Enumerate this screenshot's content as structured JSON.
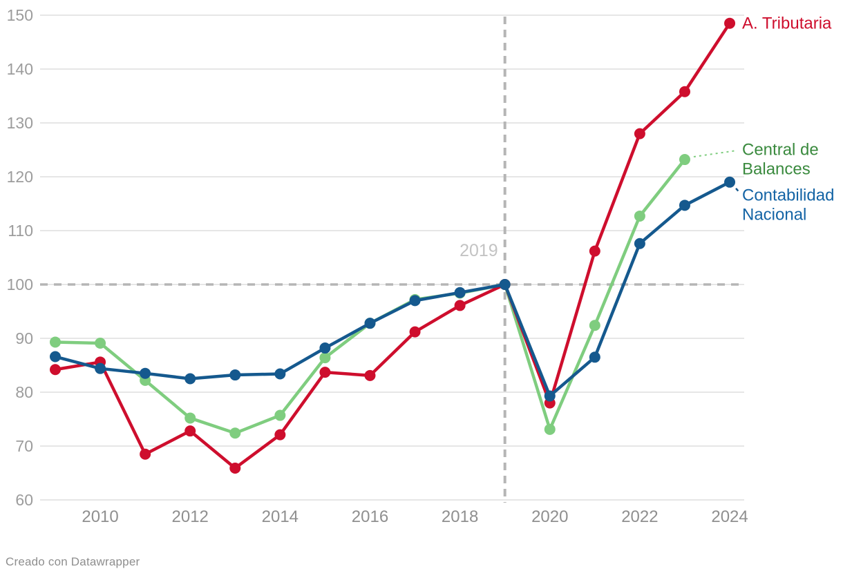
{
  "chart_data": {
    "type": "line",
    "title": "",
    "x": [
      2009,
      2010,
      2011,
      2012,
      2013,
      2014,
      2015,
      2016,
      2017,
      2018,
      2019,
      2020,
      2021,
      2022,
      2023,
      2024
    ],
    "series": [
      {
        "name": "A. Tributaria",
        "label_lines": [
          "A. Tributaria"
        ],
        "color": "#ce0e2d",
        "label_color": "#ce0e2d",
        "values": [
          84.2,
          85.6,
          68.5,
          72.8,
          65.9,
          72.1,
          83.7,
          83.1,
          91.2,
          96.1,
          100,
          78.0,
          106.2,
          128.0,
          135.8,
          148.5
        ]
      },
      {
        "name": "Central de Balances",
        "label_lines": [
          "Central de",
          "Balances"
        ],
        "color": "#7fcd7f",
        "label_color": "#3a8a3e",
        "values": [
          89.3,
          89.1,
          82.2,
          75.2,
          72.4,
          75.7,
          86.4,
          92.8,
          97.2,
          98.4,
          100,
          73.1,
          92.4,
          112.7,
          123.2,
          null
        ]
      },
      {
        "name": "Contabilidad Nacional",
        "label_lines": [
          "Contabilidad",
          "Nacional"
        ],
        "color": "#15598e",
        "label_color": "#1464a5",
        "values": [
          86.6,
          84.4,
          83.5,
          82.5,
          83.2,
          83.4,
          88.2,
          92.8,
          97.0,
          98.5,
          100,
          79.3,
          86.5,
          107.6,
          114.7,
          119.0
        ]
      }
    ],
    "ylim": [
      60,
      150
    ],
    "yticks": [
      "60",
      "70",
      "80",
      "90",
      "100",
      "110",
      "120",
      "130",
      "140",
      "150"
    ],
    "xticks": [
      "2010",
      "2012",
      "2014",
      "2016",
      "2018",
      "2020",
      "2022",
      "2024"
    ],
    "grid": "horizontal",
    "legend_position": "right-of-last-point",
    "annotations": {
      "vline_x": 2019,
      "vline_label": "2019",
      "hline_y": 100
    },
    "reference_year_index": 10
  },
  "colors": {
    "grid": "#e6e6e6",
    "dashed_line": "#b5b5b5",
    "axis_tick_y": "#9c9c9c",
    "axis_tick_x": "#8f8f8f",
    "annotation_label": "#c3c3c3",
    "background": "#ffffff"
  },
  "footer": {
    "credit": "Creado con Datawrapper"
  }
}
